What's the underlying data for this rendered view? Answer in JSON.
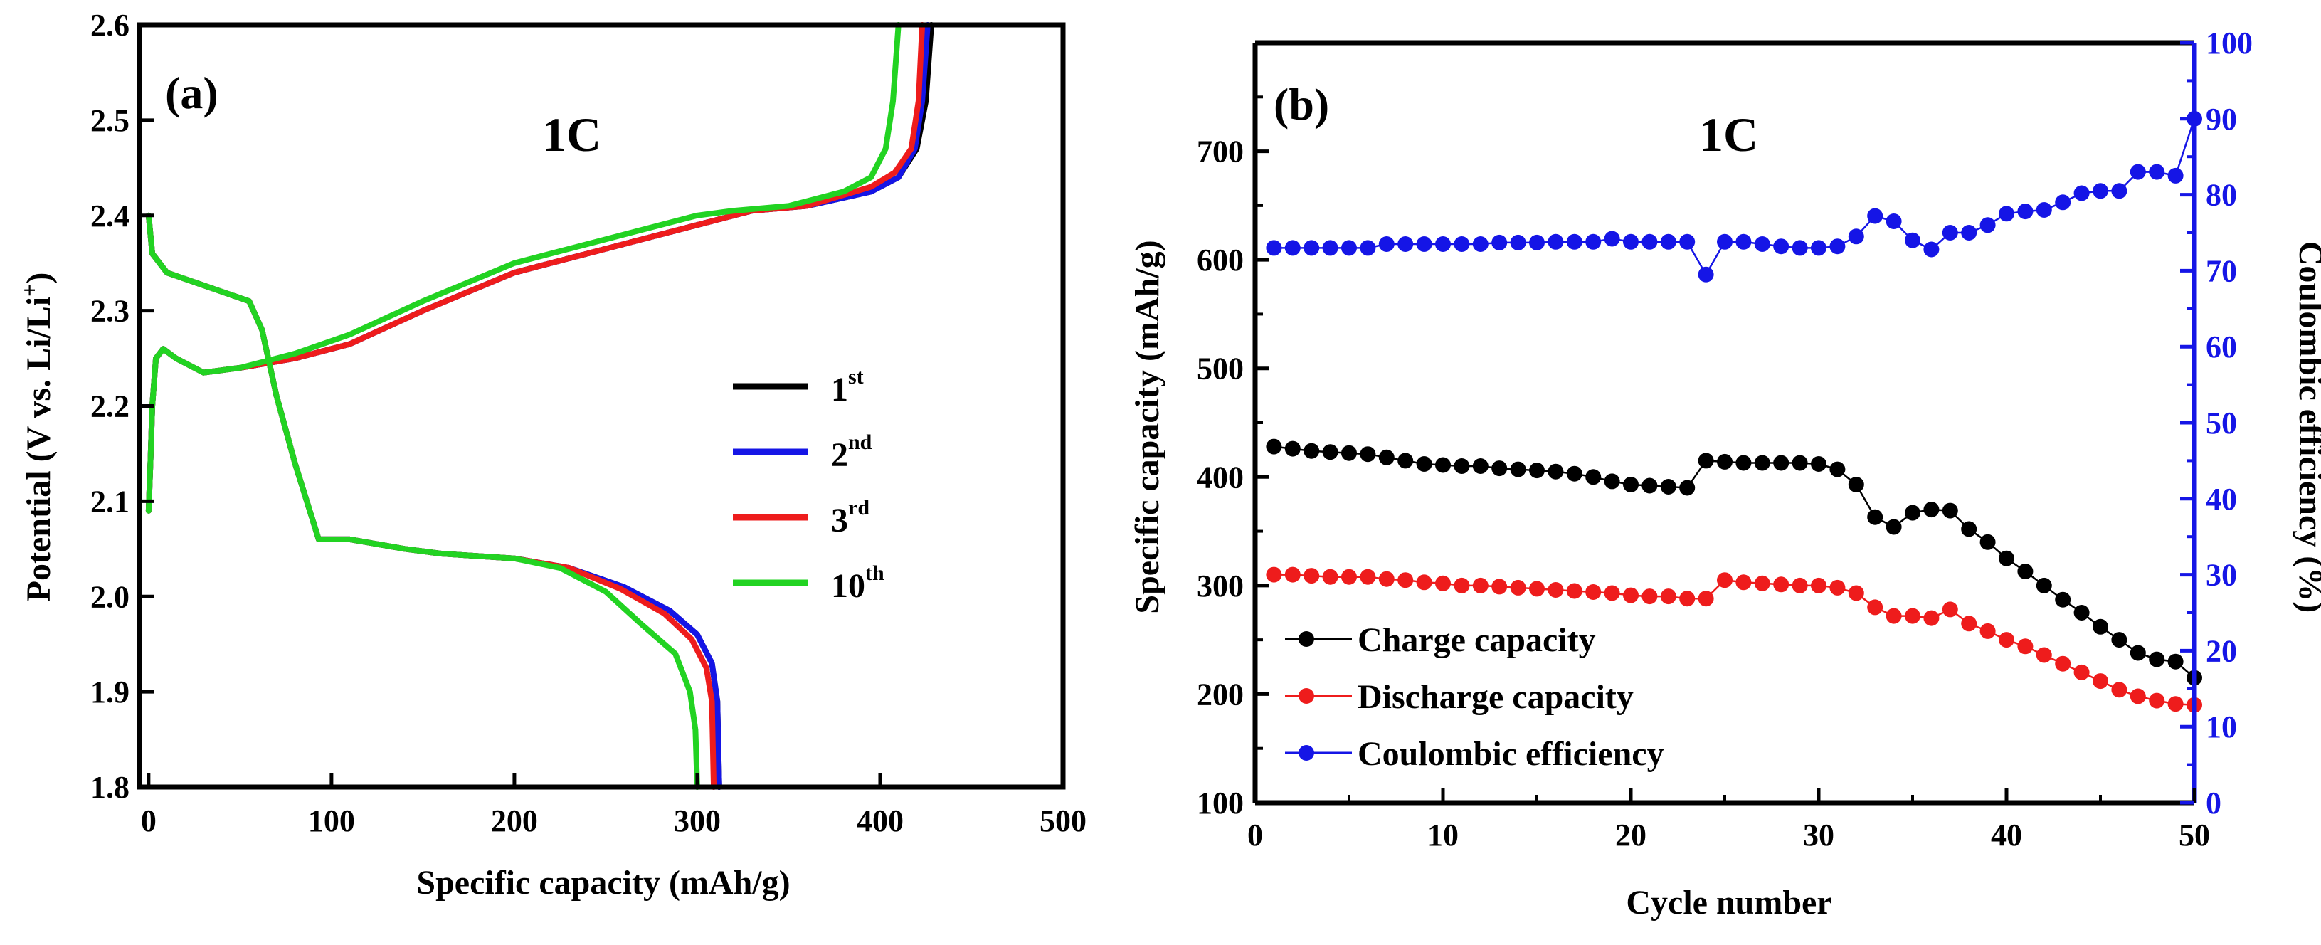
{
  "chart_data": [
    {
      "type": "line",
      "panel_label": "(a)",
      "annotation": "1C",
      "xlabel": "Specific capacity (mAh/g)",
      "ylabel_parts": [
        "Potential (V vs. Li/Li",
        "+",
        ")"
      ],
      "xlim": [
        -5,
        500
      ],
      "ylim": [
        1.8,
        2.6
      ],
      "xticks": [
        "0",
        "100",
        "200",
        "300",
        "400",
        "500"
      ],
      "yticks": [
        "1.8",
        "1.9",
        "2.0",
        "2.1",
        "2.2",
        "2.3",
        "2.4",
        "2.5",
        "2.6"
      ],
      "legend_position": "right",
      "series": [
        {
          "name_base": "1",
          "name_sup": "st",
          "color": "#000000",
          "discharge": [
            [
              0,
              2.4
            ],
            [
              2,
              2.36
            ],
            [
              10,
              2.34
            ],
            [
              25,
              2.33
            ],
            [
              40,
              2.32
            ],
            [
              55,
              2.31
            ],
            [
              62,
              2.28
            ],
            [
              70,
              2.21
            ],
            [
              80,
              2.14
            ],
            [
              93,
              2.06
            ],
            [
              110,
              2.06
            ],
            [
              140,
              2.05
            ],
            [
              160,
              2.045
            ],
            [
              200,
              2.04
            ],
            [
              230,
              2.03
            ],
            [
              260,
              2.01
            ],
            [
              285,
              1.985
            ],
            [
              300,
              1.96
            ],
            [
              308,
              1.93
            ],
            [
              311,
              1.89
            ],
            [
              312,
              1.8
            ]
          ],
          "charge": [
            [
              0,
              2.09
            ],
            [
              1,
              2.14
            ],
            [
              2,
              2.2
            ],
            [
              4,
              2.25
            ],
            [
              8,
              2.26
            ],
            [
              15,
              2.25
            ],
            [
              30,
              2.235
            ],
            [
              50,
              2.24
            ],
            [
              80,
              2.25
            ],
            [
              110,
              2.265
            ],
            [
              150,
              2.3
            ],
            [
              200,
              2.34
            ],
            [
              250,
              2.365
            ],
            [
              300,
              2.39
            ],
            [
              330,
              2.405
            ],
            [
              360,
              2.41
            ],
            [
              395,
              2.425
            ],
            [
              410,
              2.44
            ],
            [
              420,
              2.47
            ],
            [
              425,
              2.52
            ],
            [
              428,
              2.6
            ]
          ]
        },
        {
          "name_base": "2",
          "name_sup": "nd",
          "color": "#1515e6",
          "discharge": [
            [
              0,
              2.4
            ],
            [
              2,
              2.36
            ],
            [
              10,
              2.34
            ],
            [
              25,
              2.33
            ],
            [
              40,
              2.32
            ],
            [
              55,
              2.31
            ],
            [
              62,
              2.28
            ],
            [
              70,
              2.21
            ],
            [
              80,
              2.14
            ],
            [
              93,
              2.06
            ],
            [
              110,
              2.06
            ],
            [
              140,
              2.05
            ],
            [
              160,
              2.045
            ],
            [
              200,
              2.04
            ],
            [
              230,
              2.03
            ],
            [
              260,
              2.01
            ],
            [
              285,
              1.985
            ],
            [
              300,
              1.96
            ],
            [
              308,
              1.93
            ],
            [
              311,
              1.89
            ],
            [
              312,
              1.8
            ]
          ],
          "charge": [
            [
              0,
              2.09
            ],
            [
              1,
              2.14
            ],
            [
              2,
              2.2
            ],
            [
              4,
              2.25
            ],
            [
              8,
              2.26
            ],
            [
              15,
              2.25
            ],
            [
              30,
              2.235
            ],
            [
              50,
              2.24
            ],
            [
              80,
              2.25
            ],
            [
              110,
              2.265
            ],
            [
              150,
              2.3
            ],
            [
              200,
              2.34
            ],
            [
              250,
              2.365
            ],
            [
              300,
              2.39
            ],
            [
              330,
              2.405
            ],
            [
              360,
              2.41
            ],
            [
              395,
              2.425
            ],
            [
              410,
              2.44
            ],
            [
              419,
              2.47
            ],
            [
              423,
              2.52
            ],
            [
              426,
              2.6
            ]
          ]
        },
        {
          "name_base": "3",
          "name_sup": "rd",
          "color": "#ee1c1c",
          "discharge": [
            [
              0,
              2.4
            ],
            [
              2,
              2.36
            ],
            [
              10,
              2.34
            ],
            [
              25,
              2.33
            ],
            [
              40,
              2.32
            ],
            [
              55,
              2.31
            ],
            [
              62,
              2.28
            ],
            [
              70,
              2.21
            ],
            [
              80,
              2.14
            ],
            [
              93,
              2.06
            ],
            [
              110,
              2.06
            ],
            [
              140,
              2.05
            ],
            [
              160,
              2.045
            ],
            [
              200,
              2.04
            ],
            [
              230,
              2.03
            ],
            [
              258,
              2.008
            ],
            [
              282,
              1.982
            ],
            [
              297,
              1.955
            ],
            [
              305,
              1.925
            ],
            [
              308,
              1.89
            ],
            [
              309,
              1.8
            ]
          ],
          "charge": [
            [
              0,
              2.09
            ],
            [
              1,
              2.14
            ],
            [
              2,
              2.2
            ],
            [
              4,
              2.25
            ],
            [
              8,
              2.26
            ],
            [
              15,
              2.25
            ],
            [
              30,
              2.235
            ],
            [
              50,
              2.24
            ],
            [
              80,
              2.25
            ],
            [
              110,
              2.265
            ],
            [
              150,
              2.3
            ],
            [
              200,
              2.34
            ],
            [
              250,
              2.365
            ],
            [
              300,
              2.39
            ],
            [
              330,
              2.405
            ],
            [
              360,
              2.41
            ],
            [
              395,
              2.43
            ],
            [
              408,
              2.445
            ],
            [
              417,
              2.47
            ],
            [
              421,
              2.52
            ],
            [
              423,
              2.6
            ]
          ]
        },
        {
          "name_base": "10",
          "name_sup": "th",
          "color": "#22d322",
          "discharge": [
            [
              0,
              2.4
            ],
            [
              2,
              2.36
            ],
            [
              10,
              2.34
            ],
            [
              25,
              2.33
            ],
            [
              40,
              2.32
            ],
            [
              55,
              2.31
            ],
            [
              62,
              2.28
            ],
            [
              70,
              2.21
            ],
            [
              80,
              2.14
            ],
            [
              93,
              2.06
            ],
            [
              110,
              2.06
            ],
            [
              140,
              2.05
            ],
            [
              160,
              2.045
            ],
            [
              200,
              2.04
            ],
            [
              225,
              2.03
            ],
            [
              250,
              2.005
            ],
            [
              270,
              1.97
            ],
            [
              288,
              1.94
            ],
            [
              296,
              1.9
            ],
            [
              299,
              1.86
            ],
            [
              300,
              1.8
            ]
          ],
          "charge": [
            [
              0,
              2.09
            ],
            [
              1,
              2.14
            ],
            [
              2,
              2.2
            ],
            [
              4,
              2.25
            ],
            [
              8,
              2.26
            ],
            [
              15,
              2.25
            ],
            [
              30,
              2.235
            ],
            [
              50,
              2.24
            ],
            [
              80,
              2.255
            ],
            [
              110,
              2.275
            ],
            [
              150,
              2.31
            ],
            [
              200,
              2.35
            ],
            [
              250,
              2.375
            ],
            [
              300,
              2.4
            ],
            [
              320,
              2.405
            ],
            [
              350,
              2.41
            ],
            [
              380,
              2.425
            ],
            [
              395,
              2.44
            ],
            [
              403,
              2.47
            ],
            [
              407,
              2.52
            ],
            [
              410,
              2.6
            ]
          ]
        }
      ]
    },
    {
      "type": "scatter",
      "panel_label": "(b)",
      "annotation": "1C",
      "xlabel": "Cycle number",
      "ylabel": "Specific capacity (mAh/g)",
      "ylabel_right": "Coulombic efficiency (%)",
      "xlim": [
        0,
        50
      ],
      "ylim": [
        100,
        800
      ],
      "ylim_right": [
        0,
        100
      ],
      "xticks": [
        "0",
        "10",
        "20",
        "30",
        "40",
        "50"
      ],
      "yticks": [
        "100",
        "200",
        "300",
        "400",
        "500",
        "600",
        "700"
      ],
      "yticks_right": [
        "0",
        "10",
        "20",
        "30",
        "40",
        "50",
        "60",
        "70",
        "80",
        "90",
        "100"
      ],
      "legend_position": "bottom-left",
      "series": [
        {
          "name": "Charge capacity",
          "color": "#000000",
          "axis": "left",
          "x": [
            1,
            2,
            3,
            4,
            5,
            6,
            7,
            8,
            9,
            10,
            11,
            12,
            13,
            14,
            15,
            16,
            17,
            18,
            19,
            20,
            21,
            22,
            23,
            24,
            25,
            26,
            27,
            28,
            29,
            30,
            31,
            32,
            33,
            34,
            35,
            36,
            37,
            38,
            39,
            40,
            41,
            42,
            43,
            44,
            45,
            46,
            47,
            48,
            49,
            50
          ],
          "values": [
            428,
            426,
            424,
            423,
            422,
            421,
            418,
            415,
            412,
            411,
            410,
            410,
            408,
            407,
            406,
            405,
            403,
            400,
            396,
            393,
            392,
            391,
            390,
            415,
            414,
            413,
            413,
            413,
            413,
            412,
            407,
            393,
            363,
            354,
            367,
            370,
            369,
            352,
            340,
            325,
            313,
            300,
            287,
            275,
            262,
            250,
            238,
            232,
            230,
            215
          ]
        },
        {
          "name": "Discharge capacity",
          "color": "#ee1c1c",
          "axis": "left",
          "x": [
            1,
            2,
            3,
            4,
            5,
            6,
            7,
            8,
            9,
            10,
            11,
            12,
            13,
            14,
            15,
            16,
            17,
            18,
            19,
            20,
            21,
            22,
            23,
            24,
            25,
            26,
            27,
            28,
            29,
            30,
            31,
            32,
            33,
            34,
            35,
            36,
            37,
            38,
            39,
            40,
            41,
            42,
            43,
            44,
            45,
            46,
            47,
            48,
            49,
            50
          ],
          "values": [
            310,
            310,
            309,
            308,
            308,
            308,
            306,
            305,
            303,
            302,
            300,
            300,
            299,
            298,
            297,
            296,
            295,
            294,
            293,
            291,
            290,
            290,
            288,
            288,
            305,
            303,
            302,
            301,
            300,
            300,
            298,
            293,
            280,
            272,
            272,
            270,
            278,
            265,
            258,
            250,
            244,
            236,
            228,
            220,
            212,
            204,
            198,
            194,
            191,
            190
          ]
        },
        {
          "name": "Coulombic efficiency",
          "color": "#1515e6",
          "axis": "right",
          "x": [
            1,
            2,
            3,
            4,
            5,
            6,
            7,
            8,
            9,
            10,
            11,
            12,
            13,
            14,
            15,
            16,
            17,
            18,
            19,
            20,
            21,
            22,
            23,
            24,
            25,
            26,
            27,
            28,
            29,
            30,
            31,
            32,
            33,
            34,
            35,
            36,
            37,
            38,
            39,
            40,
            41,
            42,
            43,
            44,
            45,
            46,
            47,
            48,
            49,
            50
          ],
          "values": [
            73,
            73,
            73,
            73,
            73,
            73,
            73.5,
            73.5,
            73.5,
            73.5,
            73.5,
            73.5,
            73.7,
            73.7,
            73.7,
            73.8,
            73.8,
            73.8,
            74.2,
            73.8,
            73.8,
            73.8,
            73.8,
            69.5,
            73.8,
            73.8,
            73.5,
            73.2,
            73,
            73,
            73.2,
            74.5,
            77.2,
            76.5,
            74,
            72.8,
            75,
            75,
            76,
            77.5,
            77.8,
            78,
            79,
            80.2,
            80.5,
            80.5,
            83,
            83,
            82.5,
            90
          ]
        }
      ]
    }
  ]
}
